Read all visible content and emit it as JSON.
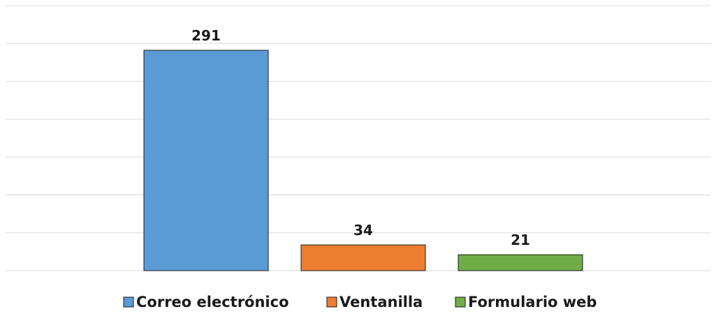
{
  "chart_data": {
    "type": "bar",
    "title": "",
    "xlabel": "",
    "ylabel": "",
    "categories": [
      "Correo electrónico",
      "Ventanilla",
      "Formulario web"
    ],
    "values": [
      291,
      34,
      21
    ],
    "colors": [
      "#5b9bd5",
      "#ed7d31",
      "#70ad47"
    ],
    "ylim": [
      0,
      350
    ],
    "grid": true,
    "legend_position": "bottom",
    "show_y_axis": false,
    "show_data_labels": true
  }
}
